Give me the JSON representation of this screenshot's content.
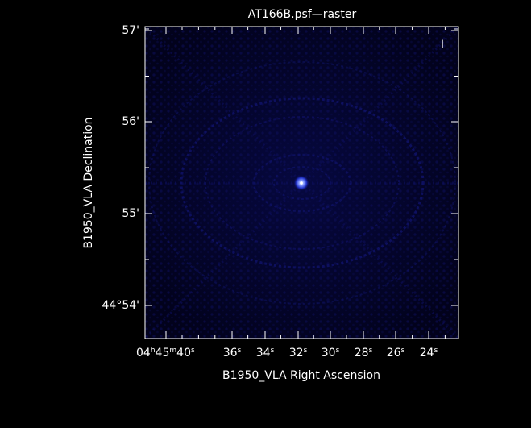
{
  "title": "AT166B.psf—raster",
  "stokes": "I",
  "axes": {
    "x_label": "B1950_VLA Right Ascension",
    "y_label": "B1950_VLA Declination",
    "x_ticks": [
      {
        "label": "04h45m40s"
      },
      {
        "label": "36s"
      },
      {
        "label": "34s"
      },
      {
        "label": "32s"
      },
      {
        "label": "30s"
      },
      {
        "label": "28s"
      },
      {
        "label": "26s"
      },
      {
        "label": "24s"
      }
    ],
    "y_ticks": [
      {
        "label": "57'"
      },
      {
        "label": "56'"
      },
      {
        "label": "55'"
      },
      {
        "label": "44°54'"
      }
    ]
  },
  "colors": {
    "background": "#000000",
    "frame": "#ffffff",
    "raster_low": "#000022",
    "raster_mid": "#0a0a66",
    "peak": "#ffffff"
  }
}
